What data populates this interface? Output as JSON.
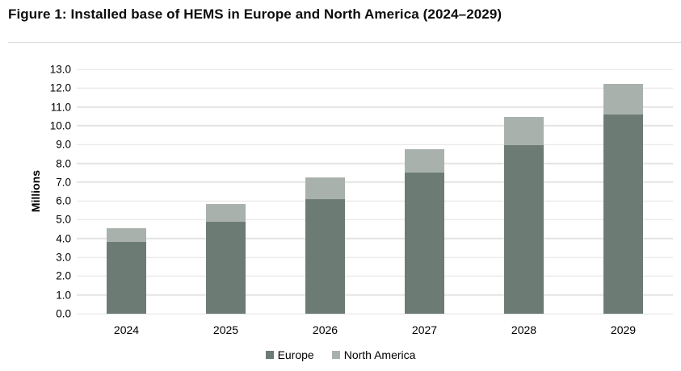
{
  "title": "Figure 1: Installed base of HEMS in Europe and North America (2024–2029)",
  "chart_data": {
    "type": "bar",
    "stacked": true,
    "title": "Figure 1: Installed base of HEMS in Europe and North America (2024–2029)",
    "categories": [
      "2024",
      "2025",
      "2026",
      "2027",
      "2028",
      "2029"
    ],
    "series": [
      {
        "name": "Europe",
        "color": "#6c7c75",
        "values": [
          3.8,
          4.9,
          6.1,
          7.5,
          8.95,
          10.6
        ]
      },
      {
        "name": "North America",
        "color": "#a9b1ad",
        "values": [
          0.75,
          0.95,
          1.15,
          1.25,
          1.5,
          1.65
        ]
      }
    ],
    "xlabel": "",
    "ylabel": "Millions",
    "ylim": [
      0,
      13
    ],
    "ytick_labels": [
      "0.0",
      "1.0",
      "2.0",
      "3.0",
      "4.0",
      "5.0",
      "6.0",
      "7.0",
      "8.0",
      "9.0",
      "10.0",
      "11.0",
      "12.0",
      "13.0"
    ],
    "grid": "horizontal",
    "legend_position": "bottom-center",
    "colors": {
      "background": "#ffffff",
      "gridline": "#e4e4e4",
      "panel_border": "#d9d9d9",
      "text": "#000000"
    }
  }
}
